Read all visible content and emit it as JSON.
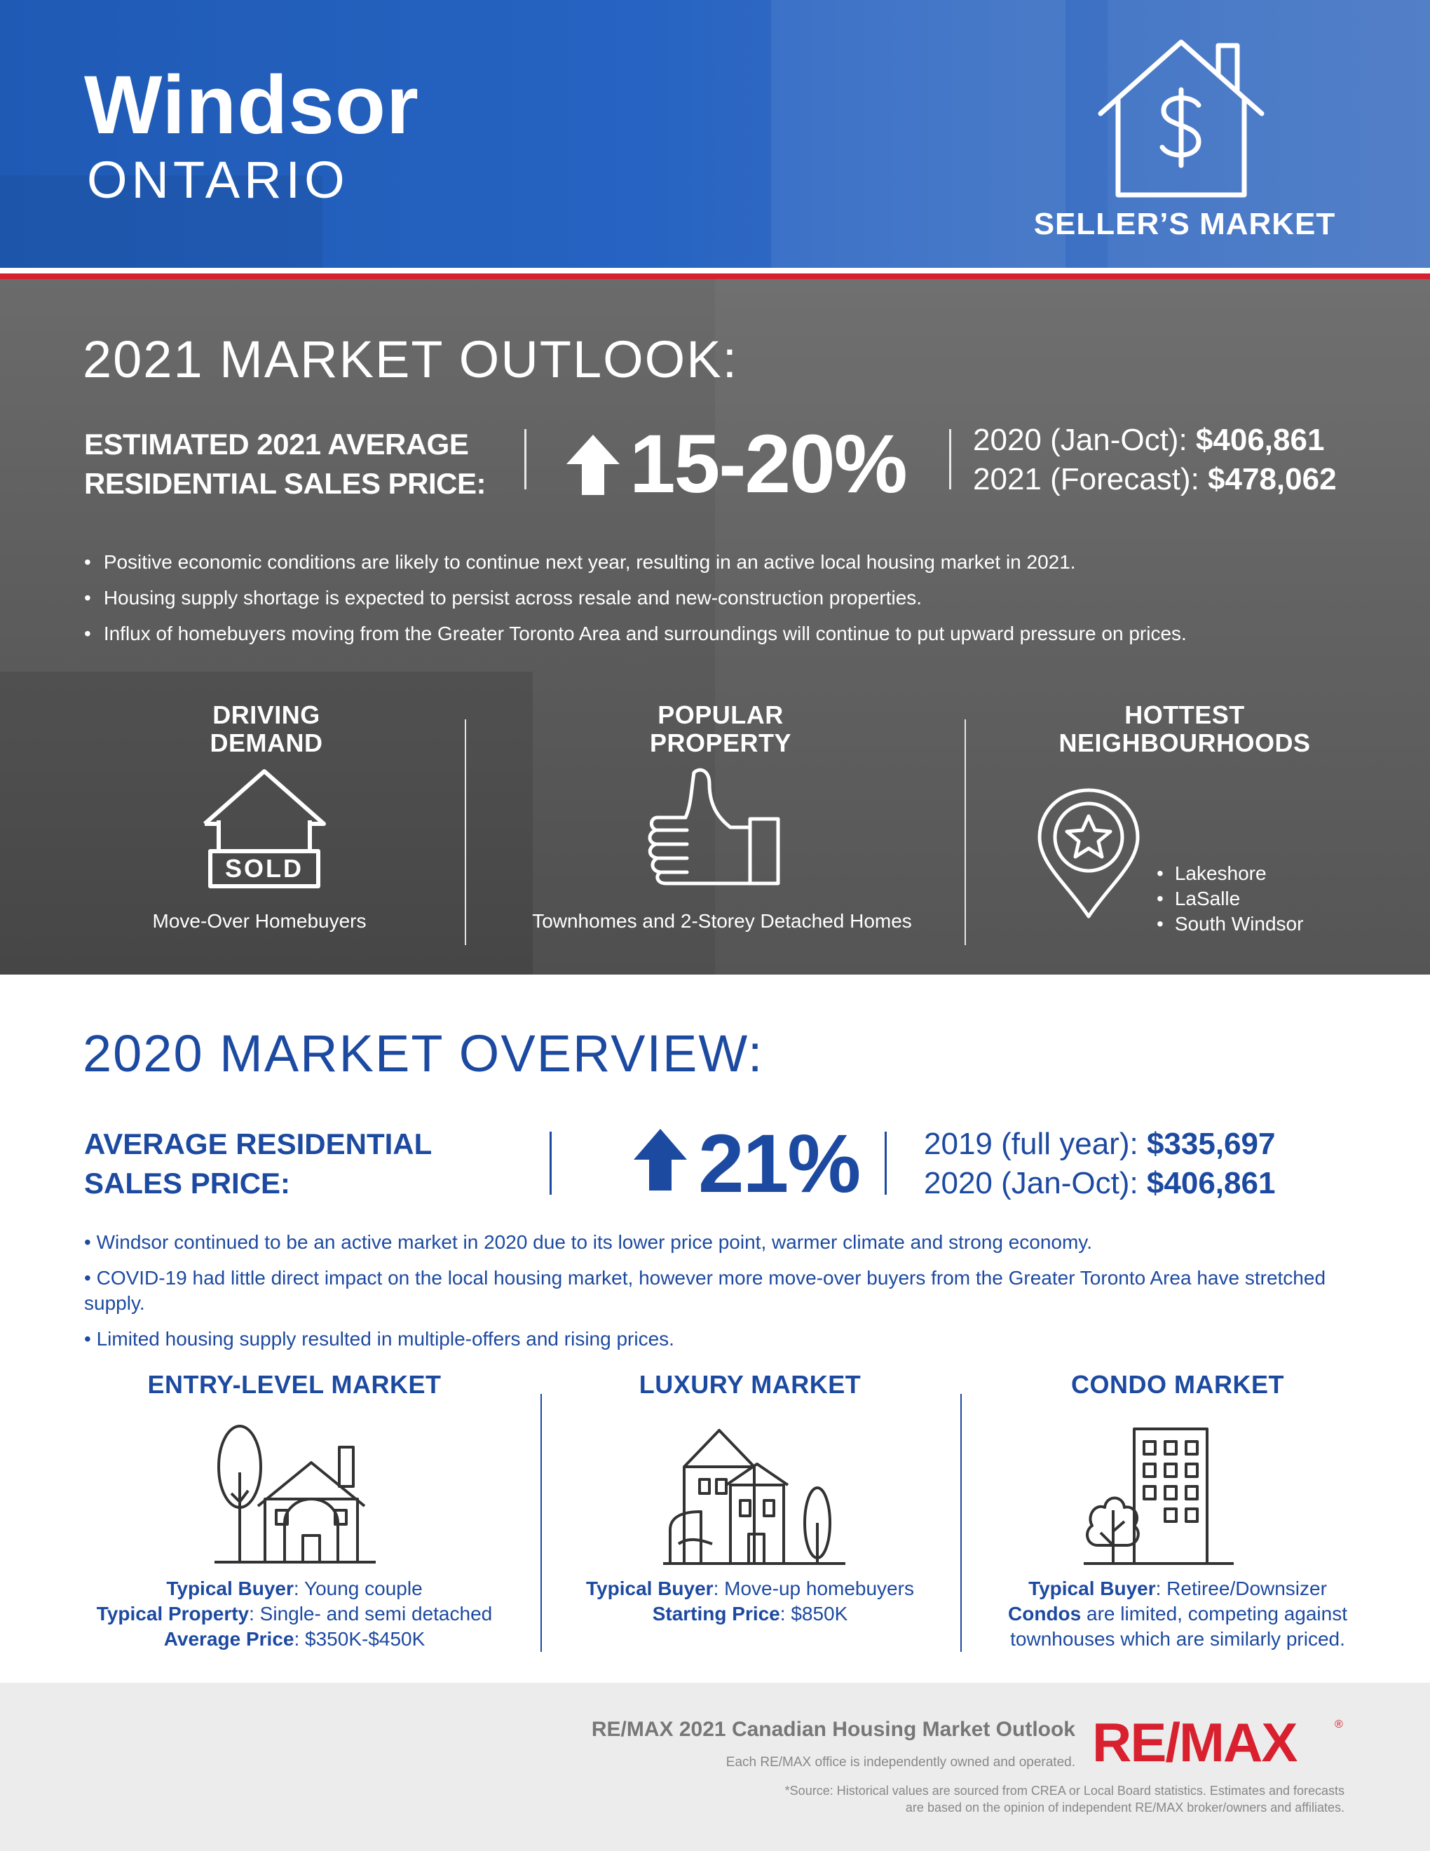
{
  "header": {
    "city": "Windsor",
    "province": "ONTARIO",
    "market_label": "SELLER’S MARKET",
    "market_icon": "house-dollar-icon"
  },
  "outlook": {
    "title": "2021 MARKET OUTLOOK:",
    "price_label_line1": "ESTIMATED 2021 AVERAGE",
    "price_label_line2": "RESIDENTIAL SALES PRICE:",
    "change": "15-20%",
    "price_2020_label": "2020 (Jan-Oct):",
    "price_2020_value": "$406,861",
    "price_2021_label": "2021 (Forecast):",
    "price_2021_value": "$478,062",
    "bullets": [
      "Positive economic conditions are likely to continue next year, resulting in an active local housing market in 2021.",
      "Housing supply shortage is expected to persist across resale and new-construction properties.",
      "Influx of homebuyers moving from the Greater Toronto Area and surroundings will continue to put upward pressure on prices."
    ],
    "driving_demand": {
      "heading_line1": "DRIVING",
      "heading_line2": "DEMAND",
      "sign_text": "SOLD",
      "caption": "Move-Over Homebuyers"
    },
    "popular_property": {
      "heading_line1": "POPULAR",
      "heading_line2": "PROPERTY",
      "caption": "Townhomes and 2-Storey Detached Homes"
    },
    "hottest_neighbourhoods": {
      "heading_line1": "HOTTEST",
      "heading_line2": "NEIGHBOURHOODS",
      "items": [
        "Lakeshore",
        "LaSalle",
        "South Windsor"
      ]
    }
  },
  "overview": {
    "title": "2020 MARKET OVERVIEW:",
    "price_label_line1": "AVERAGE RESIDENTIAL",
    "price_label_line2": "SALES PRICE:",
    "change": "21%",
    "price_2019_label": "2019 (full year):",
    "price_2019_value": "$335,697",
    "price_2020_label": "2020 (Jan-Oct):",
    "price_2020_value": "$406,861",
    "bullets": [
      "Windsor continued to be an active market in 2020 due to its lower price point, warmer climate and strong economy.",
      "COVID-19 had little direct impact on the local housing market, however more move-over buyers from the Greater Toronto Area have stretched supply.",
      "Limited housing supply resulted in multiple-offers and rising prices."
    ],
    "entry_level": {
      "heading": "ENTRY-LEVEL MARKET",
      "buyer_label": "Typical Buyer",
      "buyer_value": ": Young couple",
      "property_label": "Typical Property",
      "property_value": ": Single- and semi detached",
      "price_label": "Average Price",
      "price_value": ": $350K-$450K"
    },
    "luxury": {
      "heading": "LUXURY MARKET",
      "buyer_label": "Typical Buyer",
      "buyer_value": ": Move-up homebuyers",
      "price_label": "Starting Price",
      "price_value": ": $850K"
    },
    "condo": {
      "heading": "CONDO MARKET",
      "buyer_label": "Typical Buyer",
      "buyer_value": ": Retiree/Downsizer",
      "condos_label": "Condos",
      "condos_value_line1": " are limited, competing against",
      "condos_value_line2": "townhouses which are similarly priced."
    }
  },
  "footer": {
    "title": "RE/MAX 2021 Canadian Housing Market Outlook",
    "owned": "Each RE/MAX office is independently owned and operated.",
    "source_line1": "*Source: Historical values are sourced from CREA or Local Board statistics. Estimates and forecasts",
    "source_line2": "are based on the opinion of independent RE/MAX broker/owners and affiliates.",
    "logo_text": "RE/MAX",
    "registered_mark": "®"
  },
  "colors": {
    "header_blue": "#2663c2",
    "brand_blue": "#1d4aa1",
    "brand_red": "#d8202f",
    "outlook_gray": "#5d5d5d",
    "footer_gray": "#ececec"
  }
}
